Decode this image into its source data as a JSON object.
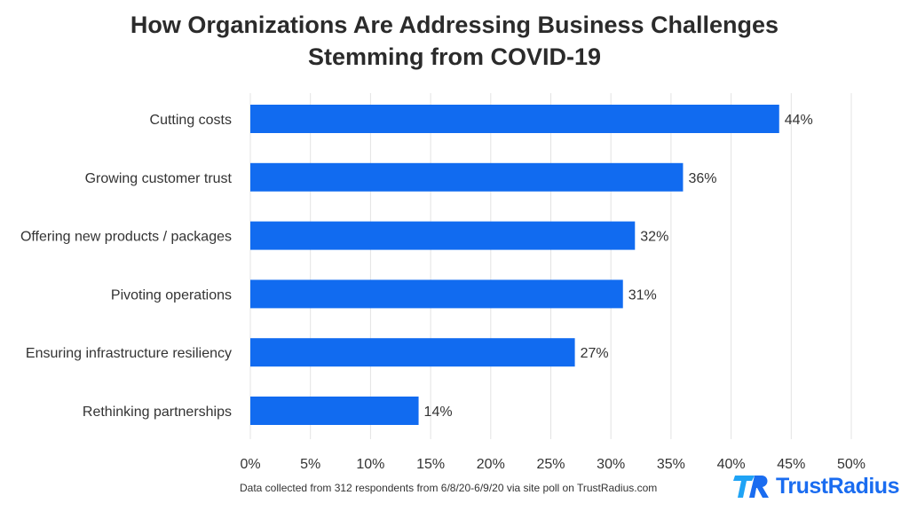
{
  "chart_data": {
    "type": "bar",
    "orientation": "horizontal",
    "title_lines": [
      "How Organizations Are Addressing Business Challenges",
      "Stemming from COVID-19"
    ],
    "categories": [
      "Cutting costs",
      "Growing customer trust",
      "Offering new products / packages",
      "Pivoting operations",
      "Ensuring infrastructure resiliency",
      "Rethinking partnerships"
    ],
    "values": [
      44,
      36,
      32,
      31,
      27,
      14
    ],
    "data_labels": [
      "44%",
      "36%",
      "32%",
      "31%",
      "27%",
      "14%"
    ],
    "xlim": [
      0,
      50
    ],
    "xticks": [
      0,
      5,
      10,
      15,
      20,
      25,
      30,
      35,
      40,
      45,
      50
    ],
    "xtick_labels": [
      "0%",
      "5%",
      "10%",
      "15%",
      "20%",
      "25%",
      "30%",
      "35%",
      "40%",
      "45%",
      "50%"
    ],
    "grid": true,
    "bar_color": "#116BF0"
  },
  "footnote": "Data collected from 312 respondents from 6/8/20-6/9/20 via site poll on TrustRadius.com",
  "logo_text": "TrustRadius"
}
